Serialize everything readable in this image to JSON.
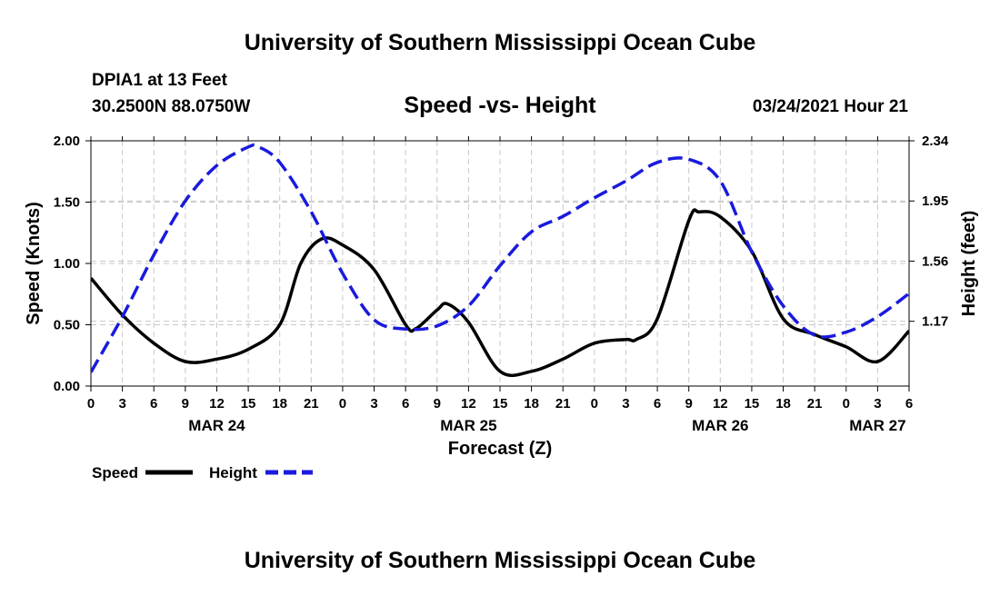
{
  "header": {
    "title": "University of Southern Mississippi Ocean Cube",
    "station": "DPIA1 at 13 Feet",
    "coords": "30.2500N 88.0750W",
    "subtitle": "Speed -vs- Height",
    "datetime": "03/24/2021 Hour 21"
  },
  "footer": {
    "title": "University of Southern Mississippi Ocean Cube"
  },
  "legend": {
    "speed_label": "Speed",
    "height_label": "Height"
  },
  "colors": {
    "speed": "#000000",
    "height": "#1a1adc",
    "grid": "#c8c8c8"
  },
  "chart_data": {
    "type": "line",
    "title": "Speed -vs- Height",
    "xlabel": "Forecast (Z)",
    "ylabel": "Speed (Knots)",
    "y2label": "Height (feet)",
    "xlim": [
      0,
      78
    ],
    "ylim": [
      0,
      2.0
    ],
    "y2lim": [
      0.75,
      2.34
    ],
    "x_ticks": [
      0,
      3,
      6,
      9,
      12,
      15,
      18,
      21,
      24,
      27,
      30,
      33,
      36,
      39,
      42,
      45,
      48,
      51,
      54,
      57,
      60,
      63,
      66,
      69,
      72,
      75,
      78
    ],
    "x_tick_labels": [
      "0",
      "3",
      "6",
      "9",
      "12",
      "15",
      "18",
      "21",
      "0",
      "3",
      "6",
      "9",
      "12",
      "15",
      "18",
      "21",
      "0",
      "3",
      "6",
      "9",
      "12",
      "15",
      "18",
      "21",
      "0",
      "3",
      "6"
    ],
    "date_labels": [
      {
        "text": "MAR 24",
        "x": 12
      },
      {
        "text": "MAR 25",
        "x": 36
      },
      {
        "text": "MAR 26",
        "x": 60
      },
      {
        "text": "MAR 27",
        "x": 75
      }
    ],
    "y_ticks": [
      0.0,
      0.5,
      1.0,
      1.5,
      2.0
    ],
    "y_tick_labels": [
      "0.00",
      "0.50",
      "1.00",
      "1.50",
      "2.00"
    ],
    "y2_ticks": [
      1.17,
      1.56,
      1.95,
      2.34
    ],
    "y2_tick_labels": [
      "1.17",
      "1.56",
      "1.95",
      "2.34"
    ],
    "grid": true,
    "series": [
      {
        "name": "Speed",
        "axis": "left",
        "style": "solid",
        "x": [
          0,
          3,
          6,
          9,
          12,
          15,
          18,
          20,
          22,
          24,
          27,
          30,
          31,
          33,
          34,
          36,
          39,
          42,
          45,
          48,
          51,
          52,
          54,
          57,
          58,
          60,
          63,
          66,
          69,
          72,
          75,
          78
        ],
        "y": [
          0.88,
          0.58,
          0.35,
          0.2,
          0.22,
          0.3,
          0.5,
          1.0,
          1.2,
          1.15,
          0.95,
          0.5,
          0.47,
          0.62,
          0.67,
          0.52,
          0.12,
          0.12,
          0.22,
          0.35,
          0.38,
          0.38,
          0.55,
          1.35,
          1.42,
          1.38,
          1.1,
          0.55,
          0.42,
          0.32,
          0.2,
          0.45
        ]
      },
      {
        "name": "Height",
        "axis": "right",
        "style": "dashed",
        "x": [
          0,
          3,
          6,
          9,
          12,
          15,
          16,
          18,
          21,
          24,
          27,
          30,
          33,
          36,
          39,
          42,
          45,
          48,
          51,
          54,
          57,
          60,
          63,
          66,
          69,
          72,
          75,
          78
        ],
        "y": [
          0.84,
          1.2,
          1.6,
          1.95,
          2.18,
          2.3,
          2.3,
          2.2,
          1.88,
          1.48,
          1.18,
          1.12,
          1.14,
          1.27,
          1.53,
          1.75,
          1.85,
          1.97,
          2.08,
          2.2,
          2.22,
          2.08,
          1.62,
          1.27,
          1.08,
          1.1,
          1.2,
          1.35
        ]
      }
    ]
  }
}
